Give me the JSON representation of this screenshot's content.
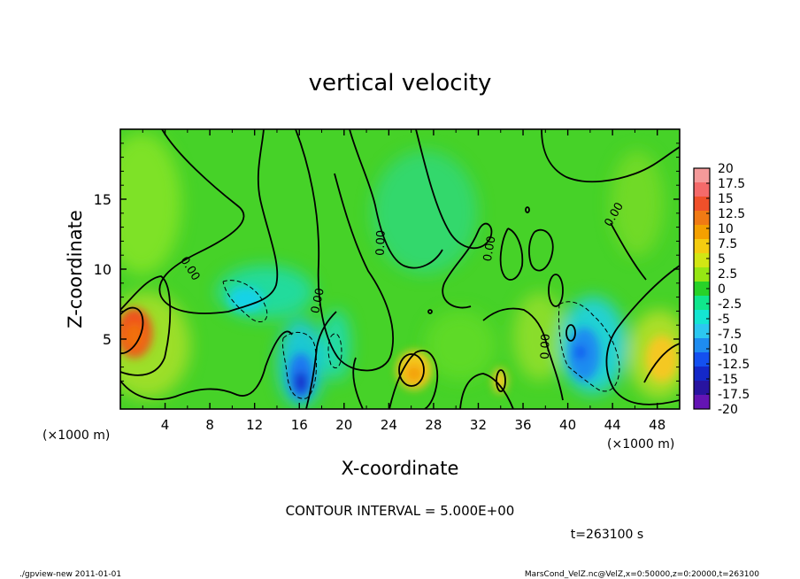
{
  "chart_data": {
    "type": "heatmap",
    "title": "vertical velocity",
    "xlabel": "X-coordinate",
    "ylabel": "Z-coordinate",
    "x_unit": "(×1000 m)",
    "y_unit": "(×1000 m)",
    "xlim": [
      0,
      50
    ],
    "ylim": [
      0,
      20
    ],
    "x_ticks": [
      "4",
      "8",
      "12",
      "16",
      "20",
      "24",
      "28",
      "32",
      "36",
      "40",
      "44",
      "48"
    ],
    "y_ticks": [
      "5",
      "10",
      "15"
    ],
    "contour_interval": "CONTOUR INTERVAL = 5.000E+00",
    "contour_labels": [
      "0.00",
      "0.00",
      "0.00",
      "0.00",
      "0.00",
      "0.00",
      "0.00"
    ],
    "time_label": "t=263100 s",
    "colorbar": {
      "labels": [
        "20",
        "17.5",
        "15",
        "12.5",
        "10",
        "7.5",
        "5",
        "2.5",
        "0",
        "-2.5",
        "-5",
        "-7.5",
        "-10",
        "-12.5",
        "-15",
        "-17.5",
        "-20"
      ],
      "colors": [
        "#f49a9a",
        "#f46a6a",
        "#f0502a",
        "#f07a14",
        "#f4a000",
        "#f4cc10",
        "#d2e614",
        "#96e614",
        "#28d228",
        "#10e68c",
        "#14e6d2",
        "#2cc8f0",
        "#1e8cf0",
        "#1450f0",
        "#1428c8",
        "#2814a0",
        "#6414b4"
      ]
    },
    "features": [
      {
        "kind": "updraft",
        "x": 1.3,
        "z": 6.3,
        "value": 12.5
      },
      {
        "kind": "updraft",
        "x": 26.0,
        "z": 2.5,
        "value": 7.5
      },
      {
        "kind": "updraft",
        "x": 48.5,
        "z": 3.8,
        "value": 5
      },
      {
        "kind": "downdraft",
        "x": 16.2,
        "z": 2.2,
        "value": -15
      },
      {
        "kind": "downdraft",
        "x": 41.5,
        "z": 4.0,
        "value": -10
      },
      {
        "kind": "downdraft",
        "x": 11.5,
        "z": 8.2,
        "value": -5
      }
    ]
  },
  "footer": {
    "left": "./gpview-new   2011-01-01",
    "right": "MarsCond_VelZ.nc@VelZ,x=0:50000,z=0:20000,t=263100"
  }
}
